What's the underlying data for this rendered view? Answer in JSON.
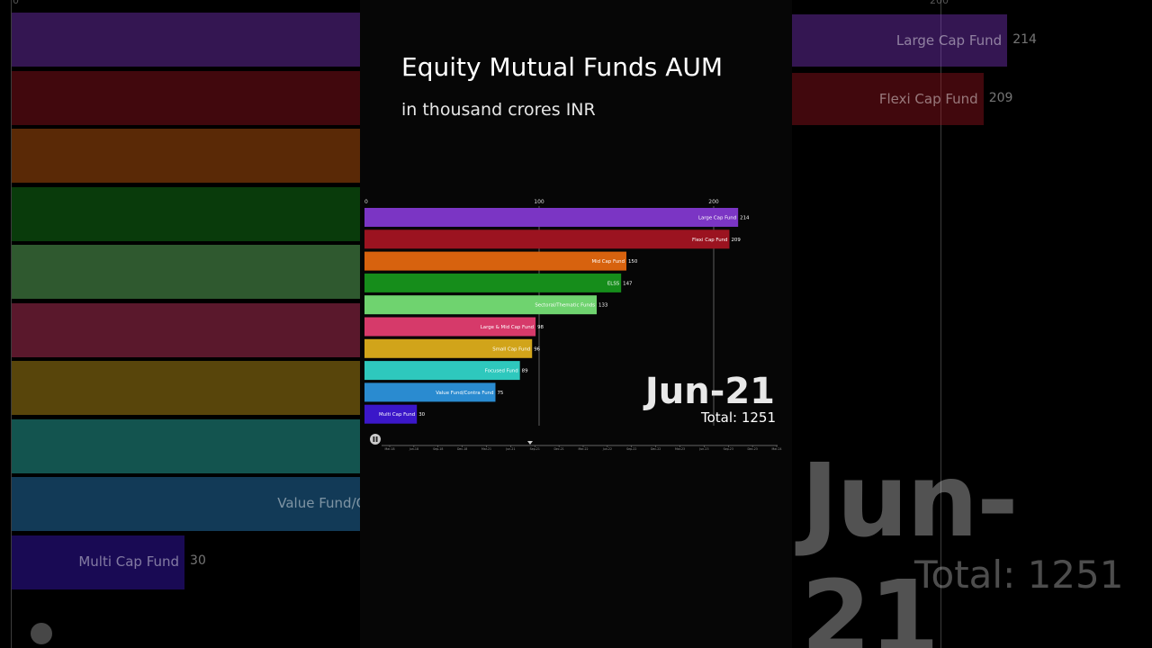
{
  "header": {
    "title": "Equity Mutual Funds AUM",
    "subtitle": "in thousand crores INR"
  },
  "chart_data": {
    "type": "bar",
    "orientation": "horizontal",
    "title": "Equity Mutual Funds AUM",
    "subtitle": "in thousand crores INR",
    "xlim": [
      0,
      240
    ],
    "xticks": [
      0,
      100,
      200
    ],
    "grid": true,
    "date_label": "Jun-21",
    "total_label": "Total: 1251",
    "categories": [
      "Large Cap Fund",
      "Flexi Cap Fund",
      "Mid Cap Fund",
      "ELSS",
      "Sectoral/Thematic Funds",
      "Large & Mid Cap Fund",
      "Small Cap Fund",
      "Focused Fund",
      "Value Fund/Contra Fund",
      "Multi Cap Fund"
    ],
    "values": [
      214,
      209,
      150,
      147,
      133,
      98,
      96,
      89,
      75,
      30
    ],
    "colors": [
      "#7b35c4",
      "#9b1320",
      "#d7620e",
      "#168d1b",
      "#6fd36f",
      "#d63a6a",
      "#d1a41a",
      "#2ec8bd",
      "#2a8bd0",
      "#3b17c9"
    ],
    "timeline_labels": [
      "Mar-18",
      "Jun-18",
      "Sep-18",
      "Dec-18",
      "Mar-21",
      "Jun-21",
      "Sep-21",
      "Dec-21",
      "Mar-22",
      "Jun-22",
      "Sep-22",
      "Dec-22",
      "Mar-23",
      "Jun-23",
      "Sep-23",
      "Dec-23",
      "Mar-24"
    ]
  },
  "controls": {
    "pause_icon": "pause-icon"
  }
}
